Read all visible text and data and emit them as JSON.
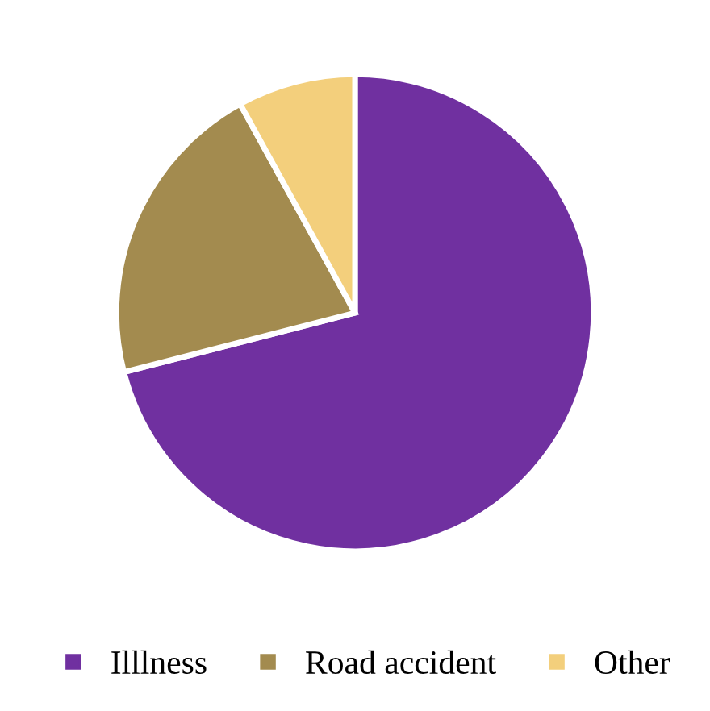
{
  "chart_data": {
    "type": "pie",
    "categories": [
      "Illlness",
      "Road accident",
      "Other"
    ],
    "values": [
      71,
      21,
      8
    ],
    "colors": [
      "#7030a0",
      "#a38b4f",
      "#f3cf7c"
    ],
    "legend": "bottom"
  }
}
